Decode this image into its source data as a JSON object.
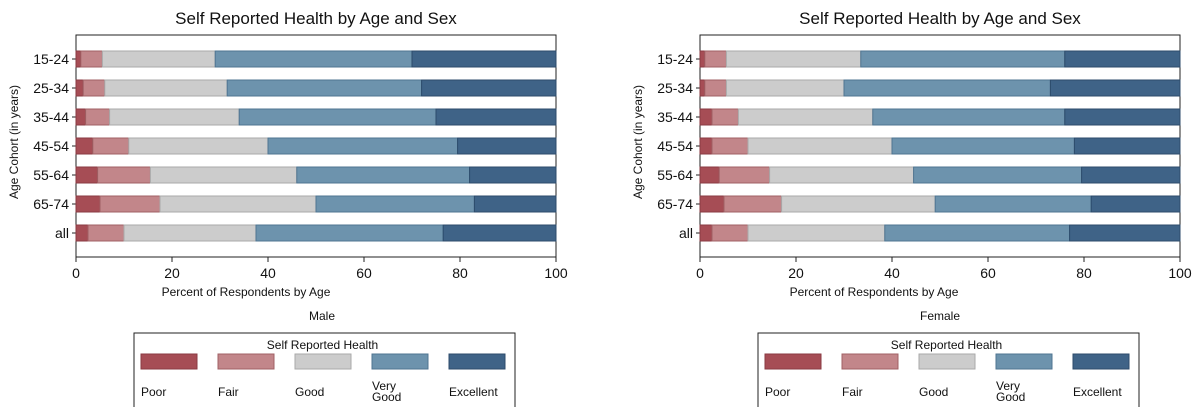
{
  "chart_data": [
    {
      "type": "bar",
      "orientation": "horizontal",
      "stacked": true,
      "title": "Self Reported Health by Age and Sex",
      "xlabel": "Percent of Respondents by Age",
      "ylabel": "Age Cohort (in years)",
      "caption": "Male",
      "xlim": [
        0,
        100
      ],
      "xticks": [
        0,
        20,
        40,
        60,
        80,
        100
      ],
      "categories": [
        "15-24",
        "25-34",
        "35-44",
        "45-54",
        "55-64",
        "65-74",
        "all"
      ],
      "series": [
        {
          "name": "Poor",
          "values": [
            1,
            1.5,
            2,
            3.5,
            4.5,
            5,
            2.5
          ]
        },
        {
          "name": "Fair",
          "values": [
            4.5,
            4.5,
            5,
            7.5,
            11,
            12.5,
            7.5
          ]
        },
        {
          "name": "Good",
          "values": [
            23.5,
            25.5,
            27,
            29,
            30.5,
            32.5,
            27.5
          ]
        },
        {
          "name": "Very Good",
          "values": [
            41,
            40.5,
            41,
            39.5,
            36,
            33,
            39
          ]
        },
        {
          "name": "Excellent",
          "values": [
            30,
            28,
            25,
            20.5,
            18,
            17,
            23.5
          ]
        }
      ],
      "legend": {
        "title": "Self Reported Health",
        "placement": "bottom",
        "entries": [
          "Poor",
          "Fair",
          "Good",
          "Very\nGood",
          "Excellent"
        ]
      },
      "grid": false
    },
    {
      "type": "bar",
      "orientation": "horizontal",
      "stacked": true,
      "title": "Self Reported Health by Age and Sex",
      "xlabel": "Percent of Respondents by Age",
      "ylabel": "Age Cohort (in years)",
      "caption": "Female",
      "xlim": [
        0,
        100
      ],
      "xticks": [
        0,
        20,
        40,
        60,
        80,
        100
      ],
      "categories": [
        "15-24",
        "25-34",
        "35-44",
        "45-54",
        "55-64",
        "65-74",
        "all"
      ],
      "series": [
        {
          "name": "Poor",
          "values": [
            1,
            1,
            2.5,
            2.5,
            4,
            5,
            2.5
          ]
        },
        {
          "name": "Fair",
          "values": [
            4.5,
            4.5,
            5.5,
            7.5,
            10.5,
            12,
            7.5
          ]
        },
        {
          "name": "Good",
          "values": [
            28,
            24.5,
            28,
            30,
            30,
            32,
            28.5
          ]
        },
        {
          "name": "Very Good",
          "values": [
            42.5,
            43,
            40,
            38,
            35,
            32.5,
            38.5
          ]
        },
        {
          "name": "Excellent",
          "values": [
            24,
            27,
            24,
            22,
            20.5,
            18.5,
            23
          ]
        }
      ],
      "legend": {
        "title": "Self Reported Health",
        "placement": "bottom",
        "entries": [
          "Poor",
          "Fair",
          "Good",
          "Very\nGood",
          "Excellent"
        ]
      },
      "grid": false
    }
  ],
  "colors": {
    "series_fill": [
      "#a64d55",
      "#c2868a",
      "#cccccc",
      "#6d93ad",
      "#3f6387"
    ],
    "series_stroke": [
      "#8a3a42",
      "#a06064",
      "#aaaaaa",
      "#4f7491",
      "#2c4b6b"
    ]
  }
}
